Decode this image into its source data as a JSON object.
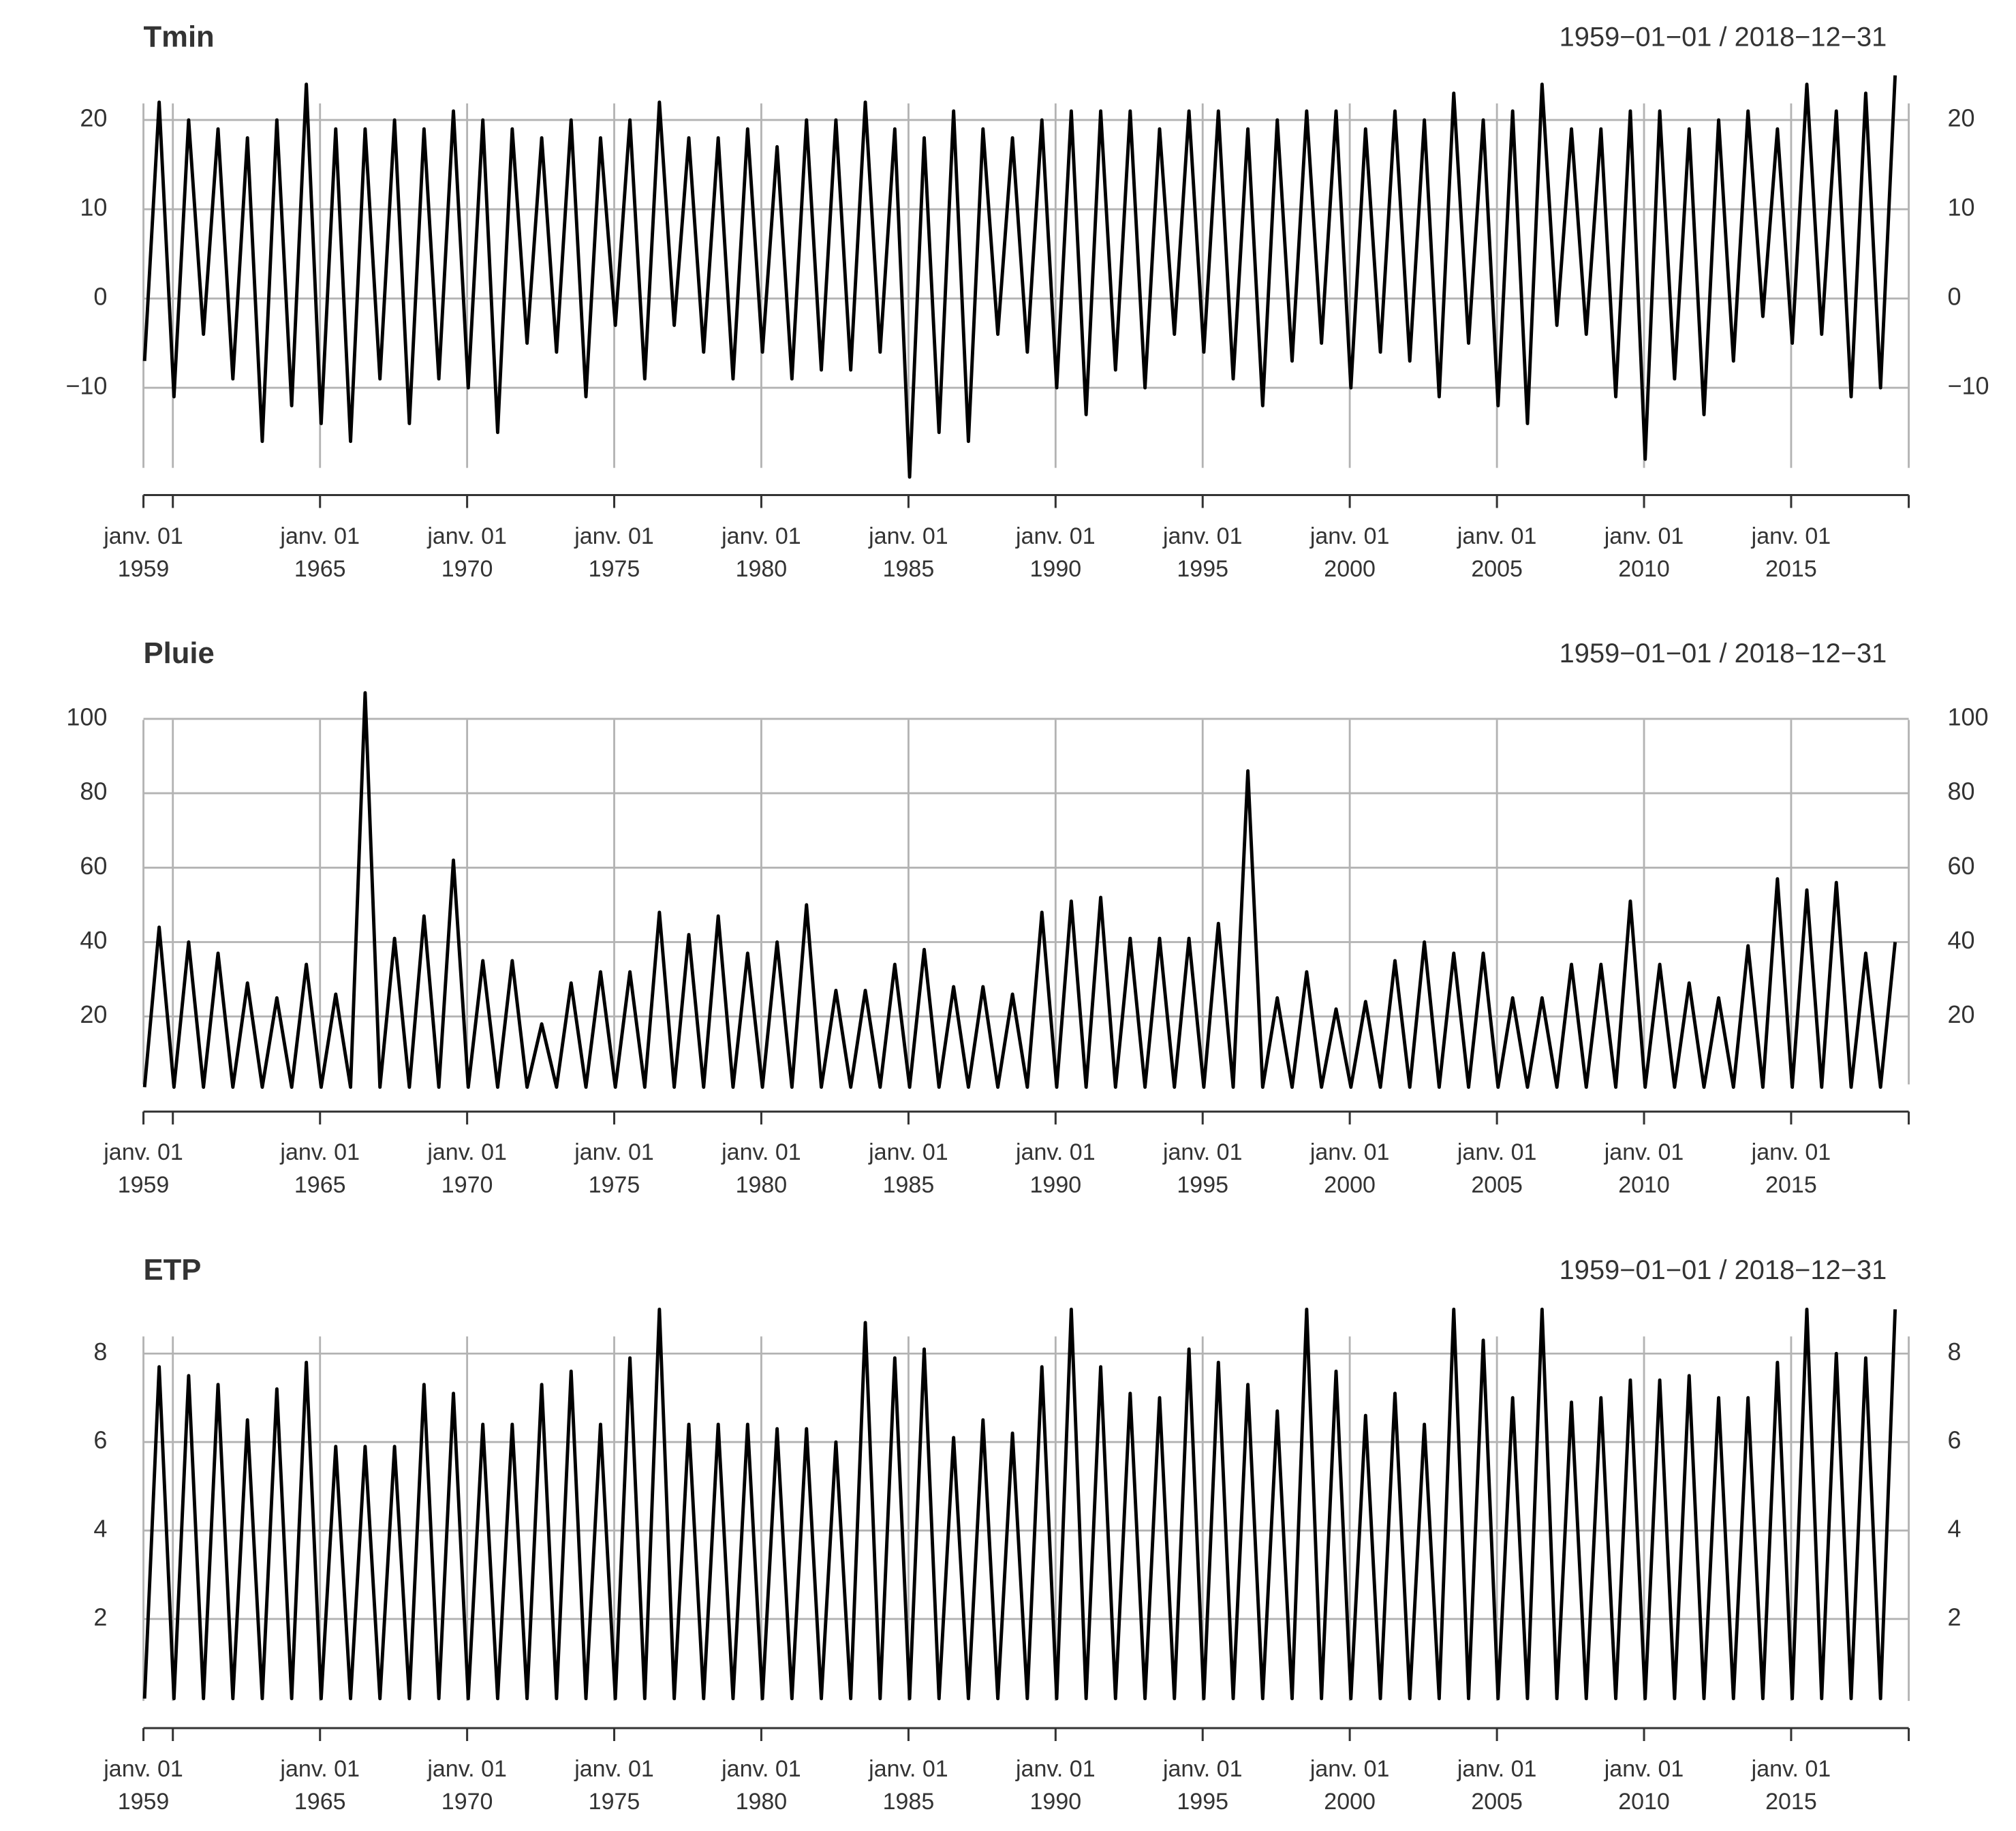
{
  "chart_data": [
    {
      "type": "line",
      "title": "Tmin",
      "subtitle": "1959−01−01 / 2018−12−31",
      "color": "#000000",
      "grid": true,
      "xlim": [
        "1959-01-01",
        "2018-12-31"
      ],
      "ylim": [
        -19.7,
        24.9
      ],
      "yticks": [
        {
          "value": -10,
          "label": "−10"
        },
        0,
        10,
        20
      ],
      "xticks": [
        {
          "value": "1959-01-01",
          "label": "janv. 01\n1959"
        },
        {
          "value": "1960-01-01",
          "label": null
        },
        {
          "value": "1965-01-01",
          "label": "janv. 01\n1965"
        },
        {
          "value": "1970-01-01",
          "label": "janv. 01\n1970"
        },
        {
          "value": "1975-01-01",
          "label": "janv. 01\n1975"
        },
        {
          "value": "1980-01-01",
          "label": "janv. 01\n1980"
        },
        {
          "value": "1985-01-01",
          "label": "janv. 01\n1985"
        },
        {
          "value": "1990-01-01",
          "label": "janv. 01\n1990"
        },
        {
          "value": "1995-01-01",
          "label": "janv. 01\n1995"
        },
        {
          "value": "2000-01-01",
          "label": "janv. 01\n2000"
        },
        {
          "value": "2005-01-01",
          "label": "janv. 01\n2005"
        },
        {
          "value": "2010-01-01",
          "label": "janv. 01\n2010"
        },
        {
          "value": "2015-01-01",
          "label": "janv. 01\n2015"
        },
        {
          "value": "2018-12-31",
          "label": null
        }
      ],
      "x": [
        "1959-01-15",
        "1959-07-15",
        "1960-01-15",
        "1960-07-15",
        "1961-01-15",
        "1961-07-15",
        "1962-01-15",
        "1962-07-15",
        "1963-01-15",
        "1963-07-15",
        "1964-01-15",
        "1964-07-15",
        "1965-01-15",
        "1965-07-15",
        "1966-01-15",
        "1966-07-15",
        "1967-01-15",
        "1967-07-15",
        "1968-01-15",
        "1968-07-15",
        "1969-01-15",
        "1969-07-15",
        "1970-01-15",
        "1970-07-15",
        "1971-01-15",
        "1971-07-15",
        "1972-01-15",
        "1972-07-15",
        "1973-01-15",
        "1973-07-15",
        "1974-01-15",
        "1974-07-15",
        "1975-01-15",
        "1975-07-15",
        "1976-01-15",
        "1976-07-15",
        "1977-01-15",
        "1977-07-15",
        "1978-01-15",
        "1978-07-15",
        "1979-01-15",
        "1979-07-15",
        "1980-01-15",
        "1980-07-15",
        "1981-01-15",
        "1981-07-15",
        "1982-01-15",
        "1982-07-15",
        "1983-01-15",
        "1983-07-15",
        "1984-01-15",
        "1984-07-15",
        "1985-01-15",
        "1985-07-15",
        "1986-01-15",
        "1986-07-15",
        "1987-01-15",
        "1987-07-15",
        "1988-01-15",
        "1988-07-15",
        "1989-01-15",
        "1989-07-15",
        "1990-01-15",
        "1990-07-15",
        "1991-01-15",
        "1991-07-15",
        "1992-01-15",
        "1992-07-15",
        "1993-01-15",
        "1993-07-15",
        "1994-01-15",
        "1994-07-15",
        "1995-01-15",
        "1995-07-15",
        "1996-01-15",
        "1996-07-15",
        "1997-01-15",
        "1997-07-15",
        "1998-01-15",
        "1998-07-15",
        "1999-01-15",
        "1999-07-15",
        "2000-01-15",
        "2000-07-15",
        "2001-01-15",
        "2001-07-15",
        "2002-01-15",
        "2002-07-15",
        "2003-01-15",
        "2003-07-15",
        "2004-01-15",
        "2004-07-15",
        "2005-01-15",
        "2005-07-15",
        "2006-01-15",
        "2006-07-15",
        "2007-01-15",
        "2007-07-15",
        "2008-01-15",
        "2008-07-15",
        "2009-01-15",
        "2009-07-15",
        "2010-01-15",
        "2010-07-15",
        "2011-01-15",
        "2011-07-15",
        "2012-01-15",
        "2012-07-15",
        "2013-01-15",
        "2013-07-15",
        "2014-01-15",
        "2014-07-15",
        "2015-01-15",
        "2015-07-15",
        "2016-01-15",
        "2016-07-15",
        "2017-01-15",
        "2017-07-15",
        "2018-01-15",
        "2018-07-15"
      ],
      "values": [
        -7,
        22,
        -11,
        20,
        -4,
        19,
        -9,
        18,
        -16,
        20,
        -12,
        24,
        -14,
        19,
        -16,
        19,
        -9,
        20,
        -14,
        19,
        -9,
        21,
        -10,
        20,
        -15,
        19,
        -5,
        18,
        -6,
        20,
        -11,
        18,
        -3,
        20,
        -9,
        22,
        -3,
        18,
        -6,
        18,
        -9,
        19,
        -6,
        17,
        -9,
        20,
        -8,
        20,
        -8,
        22,
        -6,
        19,
        -20,
        18,
        -15,
        21,
        -16,
        19,
        -4,
        18,
        -6,
        20,
        -10,
        21,
        -13,
        21,
        -8,
        21,
        -10,
        19,
        -4,
        21,
        -6,
        21,
        -9,
        19,
        -12,
        20,
        -7,
        21,
        -5,
        21,
        -10,
        19,
        -6,
        21,
        -7,
        20,
        -11,
        23,
        -5,
        20,
        -12,
        21,
        -14,
        24,
        -3,
        19,
        -4,
        19,
        -11,
        21,
        -18,
        21,
        -9,
        19,
        -13,
        20,
        -7,
        21,
        -2,
        19,
        -5,
        24,
        -4,
        21,
        -11,
        23,
        -10,
        25
      ]
    },
    {
      "type": "line",
      "title": "Pluie",
      "subtitle": "1959−01−01 / 2018−12−31",
      "color": "#000000",
      "grid": true,
      "xlim": [
        "1959-01-01",
        "2018-12-31"
      ],
      "ylim": [
        0,
        107
      ],
      "yticks": [
        20,
        40,
        60,
        80,
        100
      ],
      "xticks": [
        {
          "value": "1959-01-01",
          "label": "janv. 01\n1959"
        },
        {
          "value": "1960-01-01",
          "label": null
        },
        {
          "value": "1965-01-01",
          "label": "janv. 01\n1965"
        },
        {
          "value": "1970-01-01",
          "label": "janv. 01\n1970"
        },
        {
          "value": "1975-01-01",
          "label": "janv. 01\n1975"
        },
        {
          "value": "1980-01-01",
          "label": "janv. 01\n1980"
        },
        {
          "value": "1985-01-01",
          "label": "janv. 01\n1985"
        },
        {
          "value": "1990-01-01",
          "label": "janv. 01\n1990"
        },
        {
          "value": "1995-01-01",
          "label": "janv. 01\n1995"
        },
        {
          "value": "2000-01-01",
          "label": "janv. 01\n2000"
        },
        {
          "value": "2005-01-01",
          "label": "janv. 01\n2005"
        },
        {
          "value": "2010-01-01",
          "label": "janv. 01\n2010"
        },
        {
          "value": "2015-01-01",
          "label": "janv. 01\n2015"
        },
        {
          "value": "2018-12-31",
          "label": null
        }
      ],
      "x": [
        "1959-01-15",
        "1959-07-15",
        "1960-01-15",
        "1960-07-15",
        "1961-01-15",
        "1961-07-15",
        "1962-01-15",
        "1962-07-15",
        "1963-01-15",
        "1963-07-15",
        "1964-01-15",
        "1964-07-15",
        "1965-01-15",
        "1965-07-15",
        "1966-01-15",
        "1966-07-15",
        "1967-01-15",
        "1967-07-15",
        "1968-01-15",
        "1968-07-15",
        "1969-01-15",
        "1969-07-15",
        "1970-01-15",
        "1970-07-15",
        "1971-01-15",
        "1971-07-15",
        "1972-01-15",
        "1972-07-15",
        "1973-01-15",
        "1973-07-15",
        "1974-01-15",
        "1974-07-15",
        "1975-01-15",
        "1975-07-15",
        "1976-01-15",
        "1976-07-15",
        "1977-01-15",
        "1977-07-15",
        "1978-01-15",
        "1978-07-15",
        "1979-01-15",
        "1979-07-15",
        "1980-01-15",
        "1980-07-15",
        "1981-01-15",
        "1981-07-15",
        "1982-01-15",
        "1982-07-15",
        "1983-01-15",
        "1983-07-15",
        "1984-01-15",
        "1984-07-15",
        "1985-01-15",
        "1985-07-15",
        "1986-01-15",
        "1986-07-15",
        "1987-01-15",
        "1987-07-15",
        "1988-01-15",
        "1988-07-15",
        "1989-01-15",
        "1989-07-15",
        "1990-01-15",
        "1990-07-15",
        "1991-01-15",
        "1991-07-15",
        "1992-01-15",
        "1992-07-15",
        "1993-01-15",
        "1993-07-15",
        "1994-01-15",
        "1994-07-15",
        "1995-01-15",
        "1995-07-15",
        "1996-01-15",
        "1996-07-15",
        "1997-01-15",
        "1997-07-15",
        "1998-01-15",
        "1998-07-15",
        "1999-01-15",
        "1999-07-15",
        "2000-01-15",
        "2000-07-15",
        "2001-01-15",
        "2001-07-15",
        "2002-01-15",
        "2002-07-15",
        "2003-01-15",
        "2003-07-15",
        "2004-01-15",
        "2004-07-15",
        "2005-01-15",
        "2005-07-15",
        "2006-01-15",
        "2006-07-15",
        "2007-01-15",
        "2007-07-15",
        "2008-01-15",
        "2008-07-15",
        "2009-01-15",
        "2009-07-15",
        "2010-01-15",
        "2010-07-15",
        "2011-01-15",
        "2011-07-15",
        "2012-01-15",
        "2012-07-15",
        "2013-01-15",
        "2013-07-15",
        "2014-01-15",
        "2014-07-15",
        "2015-01-15",
        "2015-07-15",
        "2016-01-15",
        "2016-07-15",
        "2017-01-15",
        "2017-07-15",
        "2018-01-15",
        "2018-07-15"
      ],
      "values": [
        1,
        44,
        1,
        40,
        1,
        37,
        1,
        29,
        1,
        25,
        1,
        34,
        1,
        26,
        1,
        107,
        1,
        41,
        1,
        47,
        1,
        62,
        1,
        35,
        1,
        35,
        1,
        18,
        1,
        29,
        1,
        32,
        1,
        32,
        1,
        48,
        1,
        42,
        1,
        47,
        1,
        37,
        1,
        40,
        1,
        50,
        1,
        27,
        1,
        27,
        1,
        34,
        1,
        38,
        1,
        28,
        1,
        28,
        1,
        26,
        1,
        48,
        1,
        51,
        1,
        52,
        1,
        41,
        1,
        41,
        1,
        41,
        1,
        45,
        1,
        86,
        1,
        25,
        1,
        32,
        1,
        22,
        1,
        24,
        1,
        35,
        1,
        40,
        1,
        37,
        1,
        37,
        1,
        25,
        1,
        25,
        1,
        34,
        1,
        34,
        1,
        51,
        1,
        34,
        1,
        29,
        1,
        25,
        1,
        39,
        1,
        57,
        1,
        54,
        1,
        56,
        1,
        37,
        1,
        40
      ]
    },
    {
      "type": "line",
      "title": "ETP",
      "subtitle": "1959−01−01 / 2018−12−31",
      "color": "#000000",
      "grid": true,
      "xlim": [
        "1959-01-01",
        "2018-12-31"
      ],
      "ylim": [
        0,
        9
      ],
      "yticks": [
        2,
        4,
        6,
        8
      ],
      "xticks": [
        {
          "value": "1959-01-01",
          "label": "janv. 01\n1959"
        },
        {
          "value": "1960-01-01",
          "label": null
        },
        {
          "value": "1965-01-01",
          "label": "janv. 01\n1965"
        },
        {
          "value": "1970-01-01",
          "label": "janv. 01\n1970"
        },
        {
          "value": "1975-01-01",
          "label": "janv. 01\n1975"
        },
        {
          "value": "1980-01-01",
          "label": "janv. 01\n1980"
        },
        {
          "value": "1985-01-01",
          "label": "janv. 01\n1985"
        },
        {
          "value": "1990-01-01",
          "label": "janv. 01\n1990"
        },
        {
          "value": "1995-01-01",
          "label": "janv. 01\n1995"
        },
        {
          "value": "2000-01-01",
          "label": "janv. 01\n2000"
        },
        {
          "value": "2005-01-01",
          "label": "janv. 01\n2005"
        },
        {
          "value": "2010-01-01",
          "label": "janv. 01\n2010"
        },
        {
          "value": "2015-01-01",
          "label": "janv. 01\n2015"
        },
        {
          "value": "2018-12-31",
          "label": null
        }
      ],
      "x": [
        "1959-01-15",
        "1959-07-15",
        "1960-01-15",
        "1960-07-15",
        "1961-01-15",
        "1961-07-15",
        "1962-01-15",
        "1962-07-15",
        "1963-01-15",
        "1963-07-15",
        "1964-01-15",
        "1964-07-15",
        "1965-01-15",
        "1965-07-15",
        "1966-01-15",
        "1966-07-15",
        "1967-01-15",
        "1967-07-15",
        "1968-01-15",
        "1968-07-15",
        "1969-01-15",
        "1969-07-15",
        "1970-01-15",
        "1970-07-15",
        "1971-01-15",
        "1971-07-15",
        "1972-01-15",
        "1972-07-15",
        "1973-01-15",
        "1973-07-15",
        "1974-01-15",
        "1974-07-15",
        "1975-01-15",
        "1975-07-15",
        "1976-01-15",
        "1976-07-15",
        "1977-01-15",
        "1977-07-15",
        "1978-01-15",
        "1978-07-15",
        "1979-01-15",
        "1979-07-15",
        "1980-01-15",
        "1980-07-15",
        "1981-01-15",
        "1981-07-15",
        "1982-01-15",
        "1982-07-15",
        "1983-01-15",
        "1983-07-15",
        "1984-01-15",
        "1984-07-15",
        "1985-01-15",
        "1985-07-15",
        "1986-01-15",
        "1986-07-15",
        "1987-01-15",
        "1987-07-15",
        "1988-01-15",
        "1988-07-15",
        "1989-01-15",
        "1989-07-15",
        "1990-01-15",
        "1990-07-15",
        "1991-01-15",
        "1991-07-15",
        "1992-01-15",
        "1992-07-15",
        "1993-01-15",
        "1993-07-15",
        "1994-01-15",
        "1994-07-15",
        "1995-01-15",
        "1995-07-15",
        "1996-01-15",
        "1996-07-15",
        "1997-01-15",
        "1997-07-15",
        "1998-01-15",
        "1998-07-15",
        "1999-01-15",
        "1999-07-15",
        "2000-01-15",
        "2000-07-15",
        "2001-01-15",
        "2001-07-15",
        "2002-01-15",
        "2002-07-15",
        "2003-01-15",
        "2003-07-15",
        "2004-01-15",
        "2004-07-15",
        "2005-01-15",
        "2005-07-15",
        "2006-01-15",
        "2006-07-15",
        "2007-01-15",
        "2007-07-15",
        "2008-01-15",
        "2008-07-15",
        "2009-01-15",
        "2009-07-15",
        "2010-01-15",
        "2010-07-15",
        "2011-01-15",
        "2011-07-15",
        "2012-01-15",
        "2012-07-15",
        "2013-01-15",
        "2013-07-15",
        "2014-01-15",
        "2014-07-15",
        "2015-01-15",
        "2015-07-15",
        "2016-01-15",
        "2016-07-15",
        "2017-01-15",
        "2017-07-15",
        "2018-01-15",
        "2018-07-15"
      ],
      "values": [
        0.2,
        7.7,
        0.2,
        7.5,
        0.2,
        7.3,
        0.2,
        6.5,
        0.2,
        7.2,
        0.2,
        7.8,
        0.2,
        5.9,
        0.2,
        5.9,
        0.2,
        5.9,
        0.2,
        7.3,
        0.2,
        7.1,
        0.2,
        6.4,
        0.2,
        6.4,
        0.2,
        7.3,
        0.2,
        7.6,
        0.2,
        6.4,
        0.2,
        7.9,
        0.2,
        9.0,
        0.2,
        6.4,
        0.2,
        6.4,
        0.2,
        6.4,
        0.2,
        6.3,
        0.2,
        6.3,
        0.2,
        6.0,
        0.2,
        8.7,
        0.2,
        7.9,
        0.2,
        8.1,
        0.2,
        6.1,
        0.2,
        6.5,
        0.2,
        6.2,
        0.2,
        7.7,
        0.2,
        9.0,
        0.2,
        7.7,
        0.2,
        7.1,
        0.2,
        7.0,
        0.2,
        8.1,
        0.2,
        7.8,
        0.2,
        7.3,
        0.2,
        6.7,
        0.2,
        9.0,
        0.2,
        7.6,
        0.2,
        6.6,
        0.2,
        7.1,
        0.2,
        6.4,
        0.2,
        9.0,
        0.2,
        8.3,
        0.2,
        7.0,
        0.2,
        9.0,
        0.2,
        6.9,
        0.2,
        7.0,
        0.2,
        7.4,
        0.2,
        7.4,
        0.2,
        7.5,
        0.2,
        7.0,
        0.2,
        7.0,
        0.2,
        7.8,
        0.2,
        9.0,
        0.2,
        8.0,
        0.2,
        7.9,
        0.2,
        9.0
      ]
    }
  ]
}
